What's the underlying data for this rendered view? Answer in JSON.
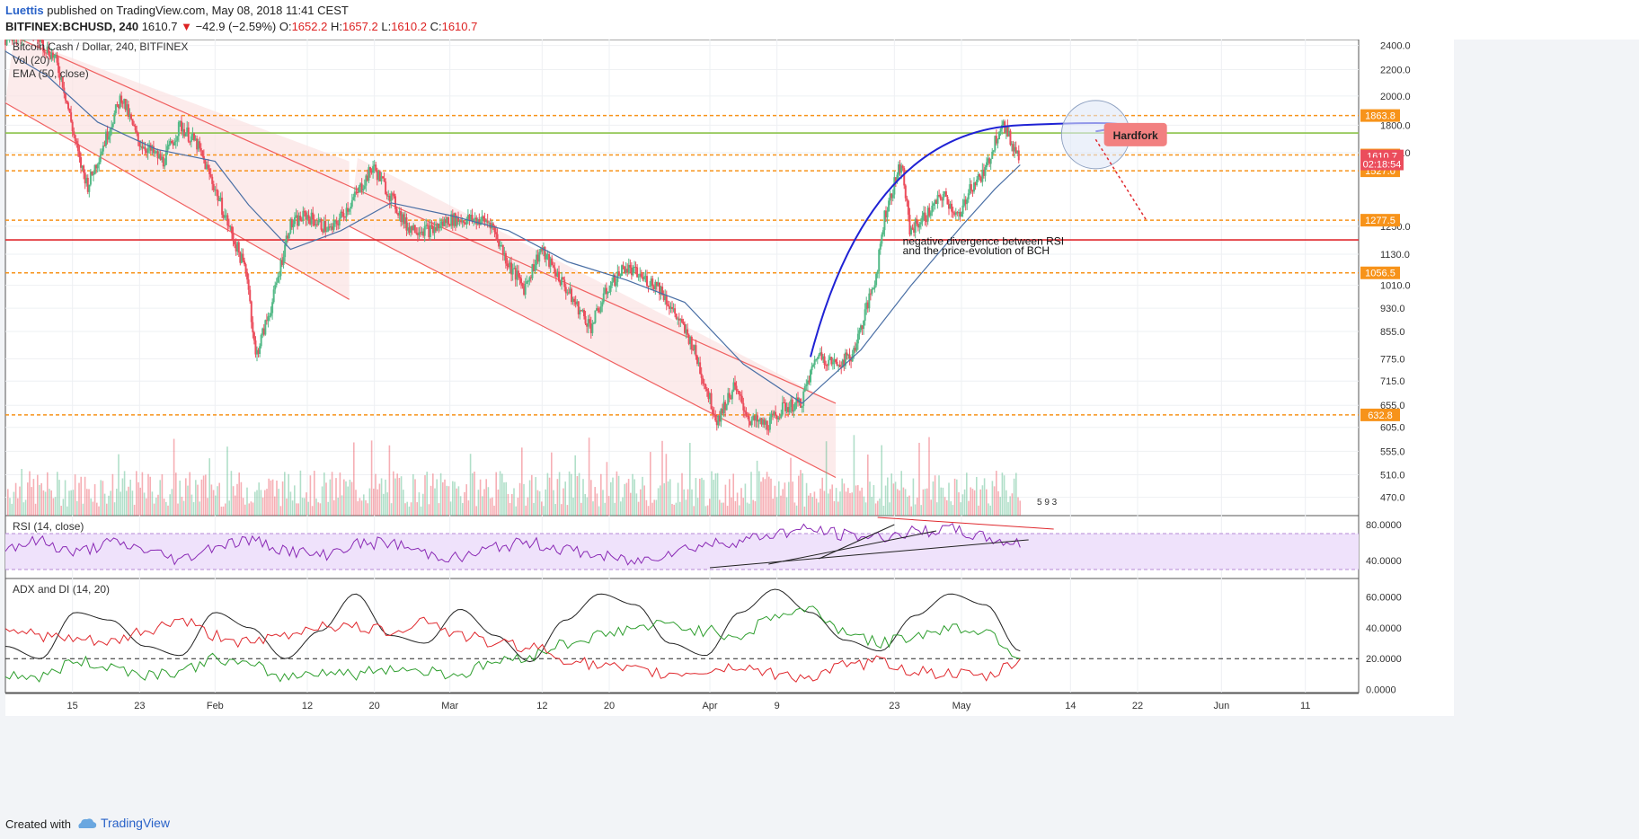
{
  "header": {
    "author": "Luettis",
    "published_text": "published on TradingView.com, May 08, 2018 11:41 CEST",
    "symbol": "BITFINEX:BCHUSD, 240",
    "last": "1610.7",
    "change": "−42.9 (−2.59%)",
    "o_label": "O:",
    "o_value": "1652.2",
    "h_label": "H:",
    "h_value": "1657.2",
    "l_label": "L:",
    "l_value": "1610.2",
    "c_label": "C:",
    "c_value": "1610.7"
  },
  "legend": {
    "title": "Bitcoin Cash / Dollar, 240, BITFINEX",
    "vol": "Vol (20)",
    "ema": "EMA (50, close)"
  },
  "annotations": {
    "hardfork": "Hardfork",
    "divergence_line1": "negative divergence between RSI",
    "divergence_line2": "and the price-evolution of BCH",
    "vol_badge": "5 9 3"
  },
  "footer": {
    "created": "Created with",
    "brand": "TradingView"
  },
  "colors": {
    "up": "#53b987",
    "down": "#eb4d5c",
    "ema": "#4a6fa5",
    "level_orange": "#f7931a",
    "green_line": "#8bc34a",
    "red_line": "#e0292e",
    "channel": "#f06060",
    "rsi": "#8a2ab5",
    "adx": "#222222",
    "di_plus": "#2e9e2e",
    "di_minus": "#e0292e",
    "arc": "#1f22d4"
  },
  "chart_data": [
    {
      "type": "candlestick",
      "title": "Bitcoin Cash / Dollar, 240, BITFINEX",
      "y_scale": "log",
      "ylim": [
        440,
        2500
      ],
      "y_ticks": [
        2400.0,
        2200.0,
        2000.0,
        1800.0,
        1630.0,
        1250.0,
        1130.0,
        1010.0,
        930.0,
        855.0,
        775.0,
        715.0,
        655.0,
        605.0,
        555.0,
        510.0,
        470.0
      ],
      "y_tick_labels": [
        "2400.0",
        "2200.0",
        "2000.0",
        "1800.0",
        "1630.0",
        "1250.0",
        "1130.0",
        "1010.0",
        "930.0",
        "855.0",
        "775.0",
        "715.0",
        "655.0",
        "605.0",
        "555.0",
        "510.0",
        "470.0"
      ],
      "x_ticks": [
        "15",
        "23",
        "Feb",
        "12",
        "20",
        "Mar",
        "12",
        "20",
        "Apr",
        "9",
        "23",
        "May",
        "14",
        "22",
        "Jun",
        "11"
      ],
      "x_range": [
        "2018-01-07",
        "2018-06-18"
      ],
      "price_path": [
        [
          "2018-01-07",
          2450
        ],
        [
          "2018-01-10",
          2550
        ],
        [
          "2018-01-13",
          2300
        ],
        [
          "2018-01-14",
          2100
        ],
        [
          "2018-01-16",
          1580
        ],
        [
          "2018-01-17",
          1450
        ],
        [
          "2018-01-19",
          1700
        ],
        [
          "2018-01-21",
          2000
        ],
        [
          "2018-01-23",
          1700
        ],
        [
          "2018-01-26",
          1580
        ],
        [
          "2018-01-28",
          1800
        ],
        [
          "2018-01-30",
          1680
        ],
        [
          "2018-02-01",
          1450
        ],
        [
          "2018-02-03",
          1230
        ],
        [
          "2018-02-05",
          1050
        ],
        [
          "2018-02-06",
          780
        ],
        [
          "2018-02-08",
          950
        ],
        [
          "2018-02-10",
          1250
        ],
        [
          "2018-02-12",
          1300
        ],
        [
          "2018-02-15",
          1230
        ],
        [
          "2018-02-18",
          1400
        ],
        [
          "2018-02-20",
          1550
        ],
        [
          "2018-02-22",
          1400
        ],
        [
          "2018-02-24",
          1250
        ],
        [
          "2018-02-27",
          1230
        ],
        [
          "2018-03-01",
          1280
        ],
        [
          "2018-03-04",
          1280
        ],
        [
          "2018-03-06",
          1270
        ],
        [
          "2018-03-08",
          1100
        ],
        [
          "2018-03-10",
          1000
        ],
        [
          "2018-03-12",
          1150
        ],
        [
          "2018-03-14",
          1050
        ],
        [
          "2018-03-16",
          950
        ],
        [
          "2018-03-18",
          870
        ],
        [
          "2018-03-20",
          1000
        ],
        [
          "2018-03-22",
          1080
        ],
        [
          "2018-03-24",
          1040
        ],
        [
          "2018-03-26",
          1010
        ],
        [
          "2018-03-28",
          910
        ],
        [
          "2018-03-30",
          820
        ],
        [
          "2018-04-01",
          680
        ],
        [
          "2018-04-02",
          620
        ],
        [
          "2018-04-04",
          700
        ],
        [
          "2018-04-06",
          620
        ],
        [
          "2018-04-08",
          610
        ],
        [
          "2018-04-10",
          650
        ],
        [
          "2018-04-12",
          660
        ],
        [
          "2018-04-14",
          790
        ],
        [
          "2018-04-16",
          760
        ],
        [
          "2018-04-18",
          780
        ],
        [
          "2018-04-19",
          850
        ],
        [
          "2018-04-21",
          1050
        ],
        [
          "2018-04-22",
          1300
        ],
        [
          "2018-04-24",
          1580
        ],
        [
          "2018-04-25",
          1230
        ],
        [
          "2018-04-27",
          1300
        ],
        [
          "2018-04-29",
          1400
        ],
        [
          "2018-05-01",
          1280
        ],
        [
          "2018-05-02",
          1430
        ],
        [
          "2018-05-04",
          1520
        ],
        [
          "2018-05-05",
          1680
        ],
        [
          "2018-05-06",
          1830
        ],
        [
          "2018-05-07",
          1700
        ],
        [
          "2018-05-08",
          1611
        ]
      ],
      "ema_50": [
        [
          "2018-01-07",
          2350
        ],
        [
          "2018-01-12",
          2150
        ],
        [
          "2018-01-18",
          1820
        ],
        [
          "2018-01-25",
          1650
        ],
        [
          "2018-02-01",
          1580
        ],
        [
          "2018-02-05",
          1350
        ],
        [
          "2018-02-10",
          1150
        ],
        [
          "2018-02-16",
          1230
        ],
        [
          "2018-02-22",
          1360
        ],
        [
          "2018-03-01",
          1300
        ],
        [
          "2018-03-08",
          1230
        ],
        [
          "2018-03-15",
          1100
        ],
        [
          "2018-03-22",
          1030
        ],
        [
          "2018-03-29",
          950
        ],
        [
          "2018-04-05",
          760
        ],
        [
          "2018-04-12",
          660
        ],
        [
          "2018-04-19",
          800
        ],
        [
          "2018-04-25",
          1010
        ],
        [
          "2018-05-01",
          1250
        ],
        [
          "2018-05-05",
          1430
        ],
        [
          "2018-05-08",
          1560
        ]
      ],
      "horizontal_levels": [
        {
          "value": 1863.8,
          "label": "1863.8",
          "style": "orange-dash"
        },
        {
          "value": 1750,
          "style": "green-solid"
        },
        {
          "value": 1616.4,
          "label": "1616.4",
          "style": "orange-dash"
        },
        {
          "value": 1527.0,
          "label": "1527.0",
          "style": "orange-dash"
        },
        {
          "value": 1277.5,
          "label": "1277.5",
          "style": "orange-dash"
        },
        {
          "value": 1190,
          "style": "red-solid"
        },
        {
          "value": 1056.5,
          "label": "1056.5",
          "style": "orange-dash"
        },
        {
          "value": 632.8,
          "label": "632.8",
          "style": "orange-dash"
        }
      ],
      "price_tags": [
        {
          "value": 1610.7,
          "label": "1610.7"
        },
        {
          "value": 1565,
          "label": "02:18:54"
        }
      ],
      "series": [
        {
          "name": "Vol (20)"
        },
        {
          "name": "EMA (50, close)"
        }
      ]
    },
    {
      "type": "line",
      "title": "RSI (14, close)",
      "ylim": [
        20,
        90
      ],
      "y_ticks": [
        80.0,
        40.0
      ],
      "y_tick_labels": [
        "80.0000",
        "40.0000"
      ],
      "bands": [
        70,
        30
      ],
      "series": [
        {
          "name": "RSI (14, close)",
          "values": [
            55,
            62,
            48,
            60,
            52,
            40,
            57,
            63,
            52,
            45,
            58,
            60,
            48,
            42,
            55,
            60,
            52,
            45,
            38,
            50,
            58,
            62,
            70,
            75,
            68,
            66,
            72,
            75,
            65,
            58
          ]
        }
      ]
    },
    {
      "type": "line",
      "title": "ADX and DI (14, 20)",
      "ylim": [
        -2,
        72
      ],
      "y_ticks": [
        60.0,
        40.0,
        20.0,
        0.0
      ],
      "y_tick_labels": [
        "60.0000",
        "40.0000",
        "20.0000",
        "0.0000"
      ],
      "reference_line": 20,
      "series": [
        {
          "name": "ADX",
          "values": [
            28,
            20,
            50,
            45,
            28,
            22,
            50,
            40,
            20,
            38,
            62,
            35,
            30,
            52,
            35,
            18,
            45,
            62,
            55,
            30,
            22,
            50,
            65,
            50,
            32,
            25,
            48,
            62,
            55,
            25
          ]
        },
        {
          "name": "+DI",
          "values": [
            10,
            8,
            18,
            15,
            10,
            12,
            20,
            15,
            8,
            12,
            10,
            14,
            12,
            10,
            18,
            22,
            30,
            35,
            40,
            42,
            38,
            35,
            48,
            52,
            38,
            30,
            35,
            40,
            38,
            22
          ]
        },
        {
          "name": "-DI",
          "values": [
            40,
            35,
            32,
            30,
            38,
            45,
            35,
            30,
            35,
            42,
            40,
            38,
            45,
            35,
            30,
            28,
            20,
            15,
            12,
            10,
            12,
            15,
            10,
            8,
            15,
            18,
            12,
            10,
            8,
            18
          ]
        }
      ]
    }
  ]
}
